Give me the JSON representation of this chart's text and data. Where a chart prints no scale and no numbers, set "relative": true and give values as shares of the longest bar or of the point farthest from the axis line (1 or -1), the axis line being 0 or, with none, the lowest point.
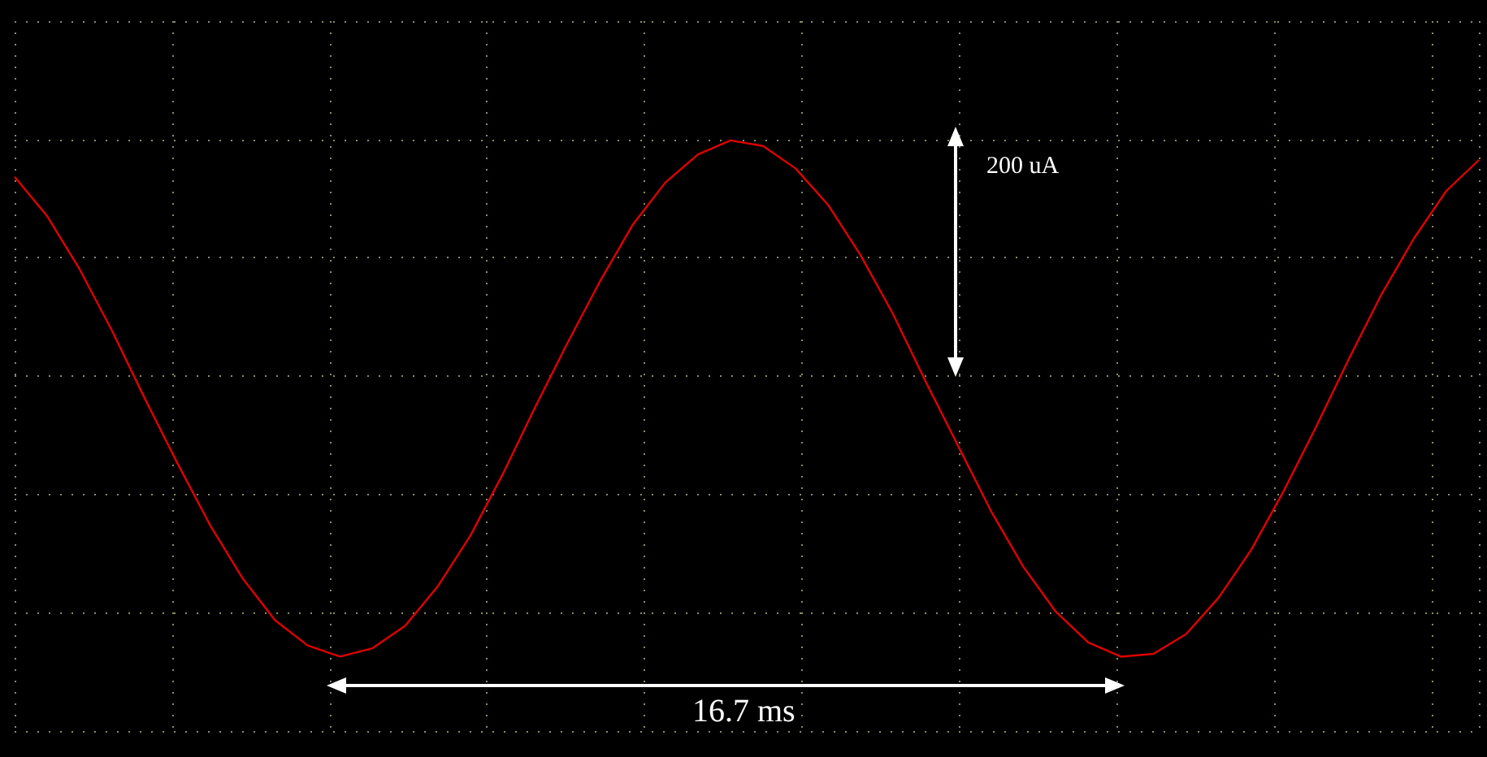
{
  "chart_data": {
    "type": "line",
    "relative": true,
    "grid": true,
    "marker": "none",
    "categories": [
      null,
      null,
      null,
      null,
      null,
      null,
      null,
      null,
      null,
      null,
      null,
      null,
      null,
      null,
      null,
      null,
      null,
      null,
      null,
      null,
      null,
      null,
      null,
      null,
      null,
      null,
      null,
      null,
      null,
      null,
      null,
      null,
      null,
      null,
      null,
      null,
      null,
      null,
      null,
      null,
      null,
      null,
      null,
      null,
      null,
      null
    ],
    "series": [
      {
        "color": "#e00000",
        "values": [
          0.71,
          0.57,
          0.38,
          0.16,
          -0.08,
          -0.31,
          -0.53,
          -0.72,
          -0.87,
          -0.96,
          -1.0,
          -0.97,
          -0.89,
          -0.75,
          -0.57,
          -0.35,
          -0.11,
          0.12,
          0.34,
          0.54,
          0.69,
          0.79,
          0.84,
          0.82,
          0.74,
          0.61,
          0.43,
          0.22,
          -0.02,
          -0.25,
          -0.48,
          -0.68,
          -0.84,
          -0.95,
          -1.0,
          -0.99,
          -0.92,
          -0.79,
          -0.62,
          -0.41,
          -0.18,
          0.06,
          0.29,
          0.49,
          0.66,
          0.77
        ]
      }
    ],
    "annotations": [
      "200 uA",
      "16.7 ms"
    ]
  }
}
